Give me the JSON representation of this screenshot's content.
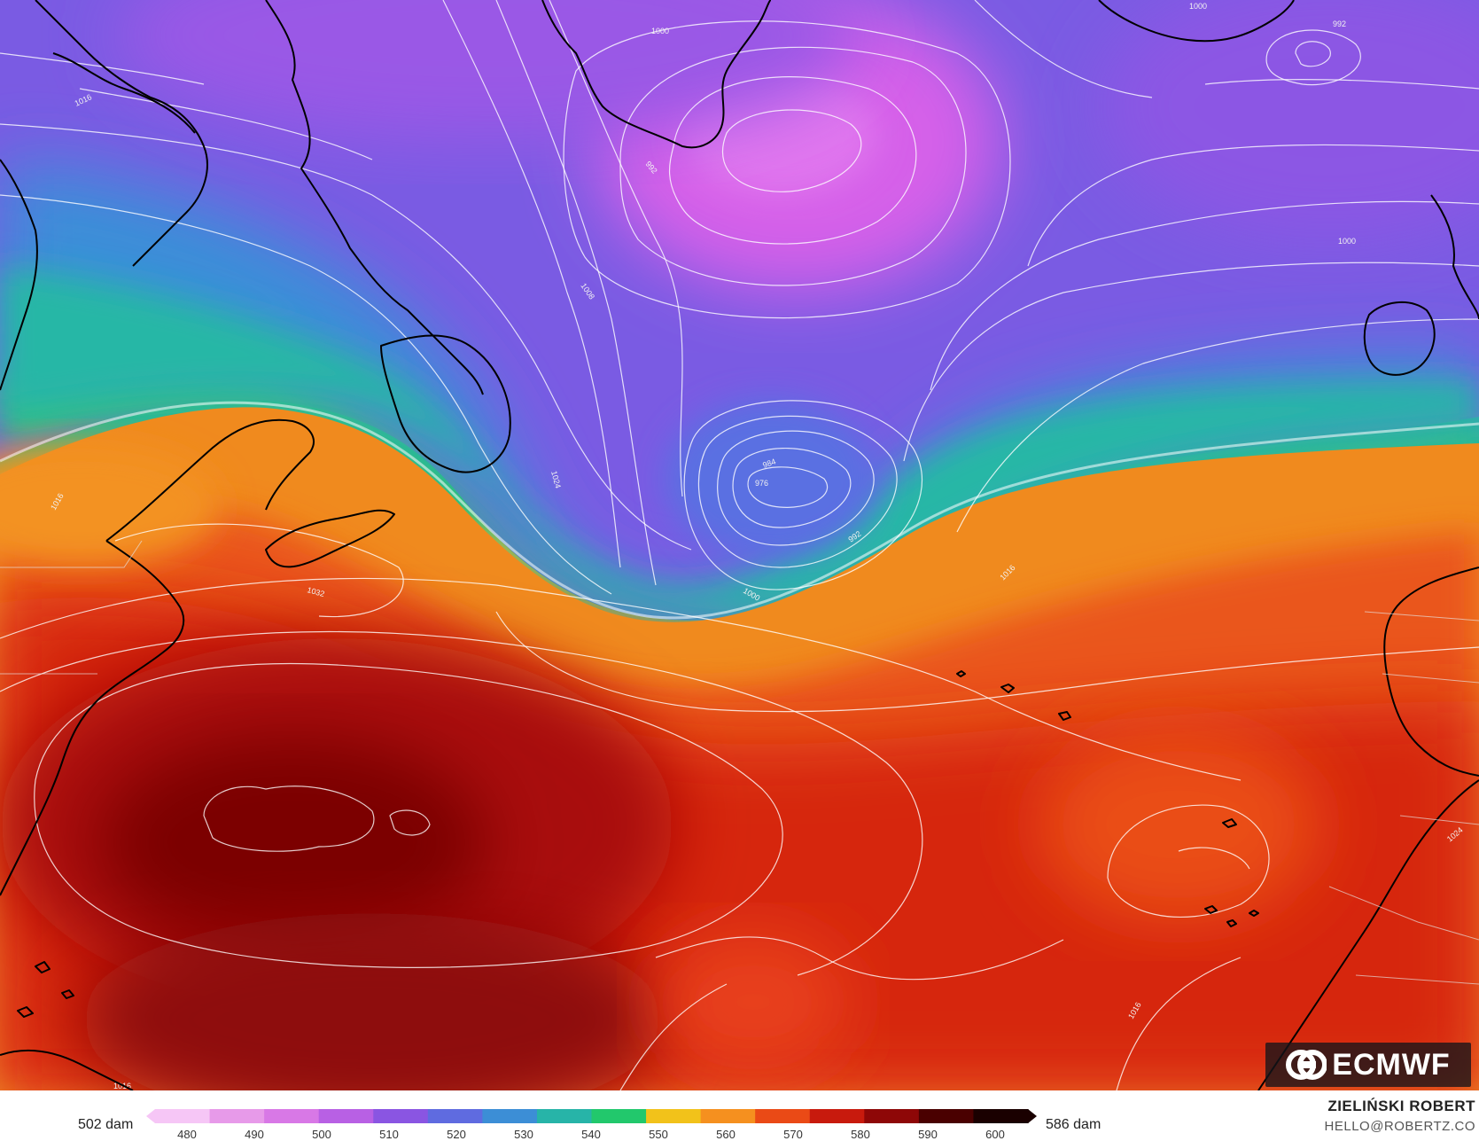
{
  "map": {
    "provider_logo": "ECMWF",
    "isobar_labels": [
      "1000",
      "1000",
      "992",
      "1016",
      "992",
      "1008",
      "1024",
      "984",
      "976",
      "992",
      "1000",
      "1000",
      "1016",
      "1032",
      "1016",
      "1024",
      "1016",
      "1016"
    ],
    "colors": {
      "land_outline": "#000000",
      "isobar": "#ffffff",
      "ridge_peak": "#6b0000",
      "trough_core": "#d85ee8"
    },
    "icons": [
      "ecmwf-logo"
    ]
  },
  "legend": {
    "min_label": "502 dam",
    "max_label": "586 dam",
    "ticks": [
      "480",
      "490",
      "500",
      "510",
      "520",
      "530",
      "540",
      "550",
      "560",
      "570",
      "580",
      "590",
      "600"
    ],
    "color_stops": [
      "#f6c6f6",
      "#e79ae9",
      "#d878e6",
      "#b860e4",
      "#8a55e2",
      "#5f6be0",
      "#3c8ed6",
      "#27b4a8",
      "#22c86c",
      "#f2c21a",
      "#f5901f",
      "#ea4a16",
      "#c81a0d",
      "#8e0707",
      "#4a0000",
      "#1a0000"
    ]
  },
  "credits": {
    "author": "ZIELIŃSKI ROBERT",
    "email": "HELLO@ROBERTZ.CO"
  }
}
